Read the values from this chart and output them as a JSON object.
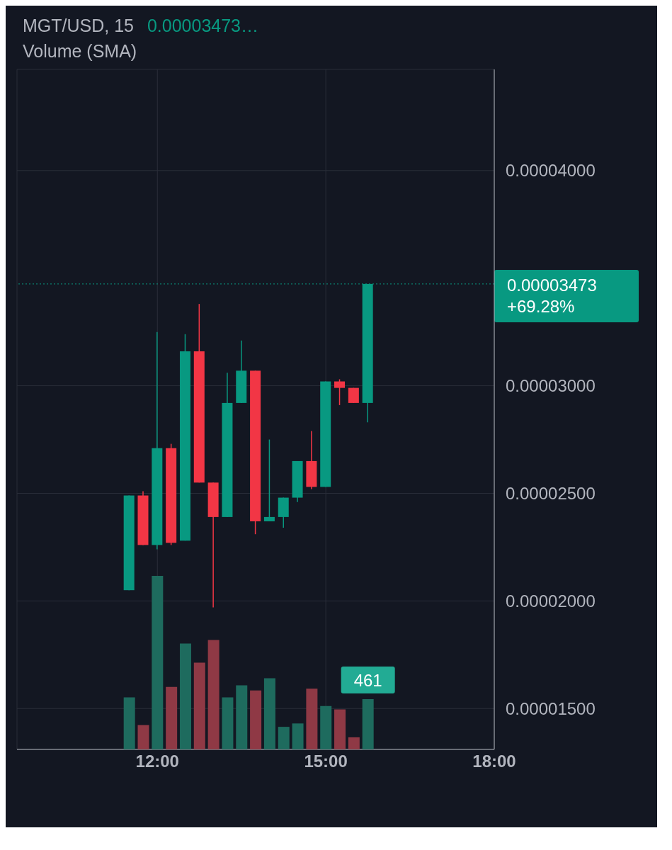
{
  "chart_data": [
    {
      "type": "candlestick",
      "title": "MGT/USD, 15",
      "subtitle": "Volume (SMA)",
      "annotations": [
        "0.00003473…"
      ],
      "x": [
        11.5,
        11.75,
        12,
        12.25,
        12.5,
        12.75,
        13,
        13.25,
        13.5,
        13.75,
        14,
        14.25,
        14.5,
        14.75,
        15,
        15.25,
        15.5,
        15.75
      ],
      "ohlc": [
        [
          2.05e-05,
          2.49e-05,
          2.05e-05,
          2.49e-05
        ],
        [
          2.49e-05,
          2.51e-05,
          2.26e-05,
          2.26e-05
        ],
        [
          2.26e-05,
          3.25e-05,
          2.24e-05,
          2.71e-05
        ],
        [
          2.71e-05,
          2.73e-05,
          2.26e-05,
          2.27e-05
        ],
        [
          2.28e-05,
          3.24e-05,
          2.28e-05,
          3.16e-05
        ],
        [
          3.16e-05,
          3.38e-05,
          2.55e-05,
          2.55e-05
        ],
        [
          2.55e-05,
          2.55e-05,
          1.97e-05,
          2.39e-05
        ],
        [
          2.39e-05,
          3.06e-05,
          2.39e-05,
          2.92e-05
        ],
        [
          2.92e-05,
          3.21e-05,
          2.92e-05,
          3.07e-05
        ],
        [
          3.07e-05,
          3.07e-05,
          2.31e-05,
          2.37e-05
        ],
        [
          2.37e-05,
          2.75e-05,
          2.37e-05,
          2.39e-05
        ],
        [
          2.39e-05,
          2.48e-05,
          2.34e-05,
          2.48e-05
        ],
        [
          2.48e-05,
          2.65e-05,
          2.46e-05,
          2.65e-05
        ],
        [
          2.65e-05,
          2.79e-05,
          2.52e-05,
          2.53e-05
        ],
        [
          2.53e-05,
          3.02e-05,
          2.53e-05,
          3.02e-05
        ],
        [
          3.02e-05,
          3.03e-05,
          2.91e-05,
          2.99e-05
        ],
        [
          2.99e-05,
          2.99e-05,
          2.92e-05,
          2.92e-05
        ],
        [
          2.92e-05,
          3.473e-05,
          2.83e-05,
          3.473e-05
        ]
      ],
      "colors": [
        "#089981",
        "#f23645",
        "#089981",
        "#f23645",
        "#089981",
        "#f23645",
        "#f23645",
        "#089981",
        "#089981",
        "#f23645",
        "#089981",
        "#089981",
        "#089981",
        "#f23645",
        "#089981",
        "#f23645",
        "#f23645",
        "#089981"
      ],
      "xlim": [
        9.5,
        18
      ],
      "xticks": [
        {
          "value": 12,
          "label": "12:00"
        },
        {
          "value": 15,
          "label": "15:00"
        },
        {
          "value": 18,
          "label": "18:00"
        }
      ],
      "ylim": [
        1.31e-05,
        4.47e-05
      ],
      "yticks": [
        {
          "value": 1.5e-05,
          "label": "0.00001500"
        },
        {
          "value": 2e-05,
          "label": "0.00002000"
        },
        {
          "value": 2.5e-05,
          "label": "0.00002500"
        },
        {
          "value": 3e-05,
          "label": "0.00003000"
        },
        {
          "value": 4e-05,
          "label": "0.00004000"
        }
      ],
      "grid": true,
      "ref_lines": [
        {
          "axis": "y",
          "value": 3.473e-05,
          "label": "0.00003473\n+69.28%",
          "color": "#089981",
          "line_style": "dotted"
        }
      ]
    },
    {
      "type": "bar",
      "tick_labels": false,
      "x": [
        11.5,
        11.75,
        12,
        12.25,
        12.5,
        12.75,
        13,
        13.25,
        13.5,
        13.75,
        14,
        14.25,
        14.5,
        14.75,
        15,
        15.25,
        15.5,
        15.75
      ],
      "xlim": [
        9.5,
        18
      ],
      "values": [
        477,
        223,
        1590,
        572,
        970,
        795,
        1002,
        477,
        588,
        541,
        652,
        207,
        238,
        557,
        398,
        366,
        111,
        461
      ],
      "colors": [
        "#1e6b5e",
        "#8f3945",
        "#1e6b5e",
        "#8f3945",
        "#1e6b5e",
        "#8f3945",
        "#8f3945",
        "#1e6b5e",
        "#1e6b5e",
        "#8f3945",
        "#1e6b5e",
        "#1e6b5e",
        "#1e6b5e",
        "#8f3945",
        "#1e6b5e",
        "#8f3945",
        "#8f3945",
        "#1e6b5e"
      ],
      "value_labels": [
        null,
        null,
        null,
        null,
        null,
        null,
        null,
        null,
        null,
        null,
        null,
        null,
        null,
        null,
        null,
        null,
        null,
        "461"
      ]
    }
  ]
}
